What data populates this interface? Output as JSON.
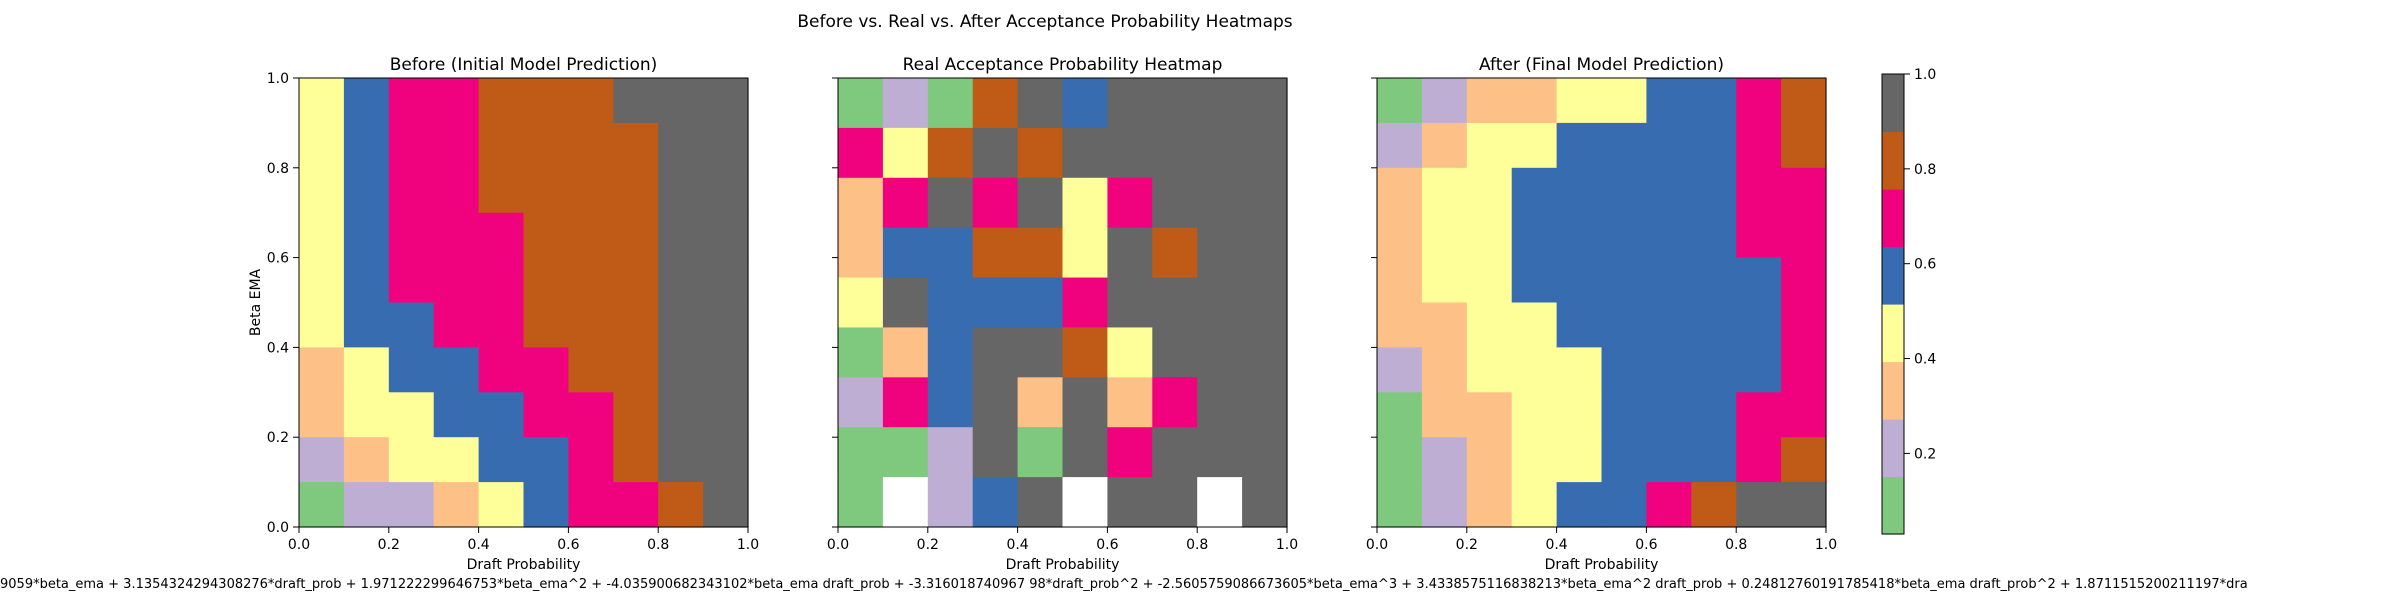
{
  "figure_title": "Before vs. Real vs. After Acceptance Probability Heatmaps",
  "formula_caption": "9059*beta_ema + 3.1354324294308276*draft_prob + 1.971222299646753*beta_ema^2 + -4.035900682343102*beta_ema draft_prob + -3.316018740967 98*draft_prob^2 + -2.5605759086673605*beta_ema^3 + 3.4338575116838213*beta_ema^2 draft_prob + 0.24812760191785418*beta_ema draft_prob^2 + 1.8711515200211197*dra",
  "colors": [
    "#7fc97f",
    "#beaed4",
    "#fdc086",
    "#ffff99",
    "#386cb0",
    "#f0027f",
    "#bf5b17",
    "#666666"
  ],
  "missing_color": "#ffffff",
  "colorbar": {
    "vmin": 0.03,
    "vmax": 1.0,
    "ticks": [
      0.2,
      0.4,
      0.6,
      0.8,
      1.0
    ],
    "tick_labels": [
      "0.2",
      "0.4",
      "0.6",
      "0.8",
      "1.0"
    ]
  },
  "chart_data": [
    {
      "type": "heatmap",
      "title": "Before (Initial Model Prediction)",
      "xlabel": "Draft Probability",
      "ylabel": "Beta EMA",
      "xlim": [
        0,
        1
      ],
      "ylim": [
        0,
        1
      ],
      "xticks": [
        "0.0",
        "0.2",
        "0.4",
        "0.6",
        "0.8",
        "1.0"
      ],
      "yticks": [
        "0.0",
        "0.2",
        "0.4",
        "0.6",
        "0.8",
        "1.0"
      ],
      "show_ytick_labels": true,
      "row_order": "top-to-bottom (beta_ema 0.9-1.0 first)",
      "color_index_grid": [
        [
          3,
          4,
          5,
          5,
          6,
          6,
          6,
          7,
          7,
          7
        ],
        [
          3,
          4,
          5,
          5,
          6,
          6,
          6,
          6,
          7,
          7
        ],
        [
          3,
          4,
          5,
          5,
          6,
          6,
          6,
          6,
          7,
          7
        ],
        [
          3,
          4,
          5,
          5,
          5,
          6,
          6,
          6,
          7,
          7
        ],
        [
          3,
          4,
          5,
          5,
          5,
          6,
          6,
          6,
          7,
          7
        ],
        [
          3,
          4,
          4,
          5,
          5,
          6,
          6,
          6,
          7,
          7
        ],
        [
          2,
          3,
          4,
          4,
          5,
          5,
          6,
          6,
          7,
          7
        ],
        [
          2,
          3,
          3,
          4,
          4,
          5,
          5,
          6,
          7,
          7
        ],
        [
          1,
          2,
          3,
          3,
          4,
          4,
          5,
          6,
          7,
          7
        ],
        [
          0,
          1,
          1,
          2,
          3,
          4,
          5,
          5,
          6,
          7
        ]
      ]
    },
    {
      "type": "heatmap",
      "title": "Real Acceptance Probability Heatmap",
      "xlabel": "Draft Probability",
      "ylabel": "",
      "xlim": [
        0,
        1
      ],
      "ylim": [
        0,
        1
      ],
      "xticks": [
        "0.0",
        "0.2",
        "0.4",
        "0.6",
        "0.8",
        "1.0"
      ],
      "yticks": [],
      "show_ytick_labels": false,
      "row_order": "top-to-bottom (beta_ema 0.9-1.0 first)",
      "color_index_grid": [
        [
          0,
          1,
          0,
          6,
          7,
          4,
          7,
          7,
          7,
          7
        ],
        [
          5,
          3,
          6,
          7,
          6,
          7,
          7,
          7,
          7,
          7
        ],
        [
          2,
          5,
          7,
          5,
          7,
          3,
          5,
          7,
          7,
          7
        ],
        [
          2,
          4,
          4,
          6,
          6,
          3,
          7,
          6,
          7,
          7
        ],
        [
          3,
          7,
          4,
          4,
          4,
          5,
          7,
          7,
          7,
          7
        ],
        [
          0,
          2,
          4,
          7,
          7,
          6,
          3,
          7,
          7,
          7
        ],
        [
          1,
          5,
          4,
          7,
          2,
          7,
          2,
          5,
          7,
          7
        ],
        [
          0,
          0,
          1,
          7,
          0,
          7,
          5,
          7,
          7,
          7
        ],
        [
          0,
          -1,
          1,
          4,
          7,
          -1,
          7,
          7,
          -1,
          7
        ]
      ],
      "row_heights_in_units": [
        1,
        1,
        1,
        1,
        1,
        1,
        1,
        1,
        1
      ]
    },
    {
      "type": "heatmap",
      "title": "After (Final Model Prediction)",
      "xlabel": "Draft Probability",
      "ylabel": "",
      "xlim": [
        0,
        1
      ],
      "ylim": [
        0,
        1
      ],
      "xticks": [
        "0.0",
        "0.2",
        "0.4",
        "0.6",
        "0.8",
        "1.0"
      ],
      "yticks": [],
      "show_ytick_labels": false,
      "row_order": "top-to-bottom (beta_ema 0.9-1.0 first)",
      "color_index_grid": [
        [
          0,
          1,
          2,
          2,
          3,
          3,
          4,
          4,
          5,
          6
        ],
        [
          1,
          2,
          3,
          3,
          4,
          4,
          4,
          4,
          5,
          6
        ],
        [
          2,
          3,
          3,
          4,
          4,
          4,
          4,
          4,
          5,
          5
        ],
        [
          2,
          3,
          3,
          4,
          4,
          4,
          4,
          4,
          5,
          5
        ],
        [
          2,
          3,
          3,
          4,
          4,
          4,
          4,
          4,
          4,
          5
        ],
        [
          2,
          2,
          3,
          3,
          4,
          4,
          4,
          4,
          4,
          5
        ],
        [
          1,
          2,
          3,
          3,
          3,
          4,
          4,
          4,
          4,
          5
        ],
        [
          0,
          2,
          2,
          3,
          3,
          4,
          4,
          4,
          5,
          5
        ],
        [
          0,
          1,
          2,
          3,
          3,
          4,
          4,
          4,
          5,
          6
        ],
        [
          0,
          1,
          2,
          3,
          4,
          4,
          5,
          6,
          7,
          7
        ]
      ]
    }
  ]
}
